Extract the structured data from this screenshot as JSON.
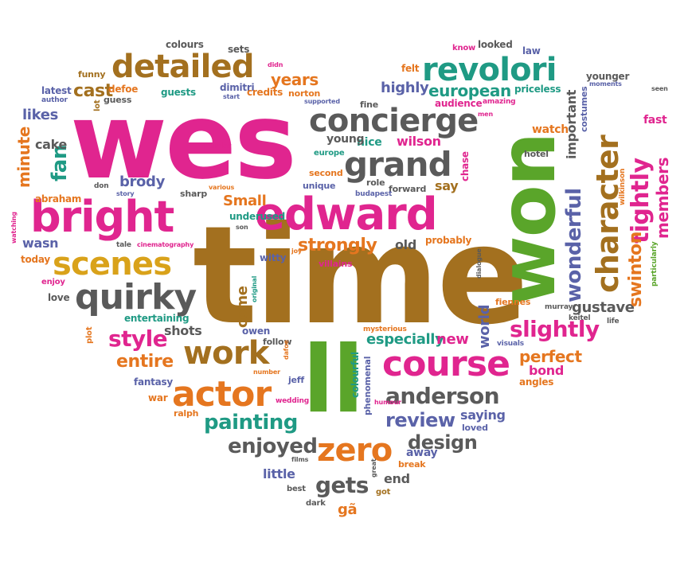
{
  "colors": {
    "pink": "#e0258f",
    "green": "#5aa52a",
    "brown": "#a3701f",
    "orange": "#e5761f",
    "teal": "#1f9a84",
    "purple": "#5a62a8",
    "gray": "#5a5a5a",
    "gold": "#d9a21a"
  },
  "words": [
    {
      "text": "wes",
      "color": "pink"
    },
    {
      "text": "time",
      "color": "brown"
    },
    {
      "text": "won",
      "color": "green"
    },
    {
      "text": "ll",
      "color": "green"
    },
    {
      "text": "edward",
      "color": "pink"
    },
    {
      "text": "bright",
      "color": "pink"
    },
    {
      "text": "concierge",
      "color": "gray"
    },
    {
      "text": "grand",
      "color": "gray"
    },
    {
      "text": "course",
      "color": "pink"
    },
    {
      "text": "revolori",
      "color": "teal"
    },
    {
      "text": "detailed",
      "color": "brown"
    },
    {
      "text": "character",
      "color": "brown"
    },
    {
      "text": "scenes",
      "color": "gold"
    },
    {
      "text": "quirky",
      "color": "gray"
    },
    {
      "text": "actor",
      "color": "orange"
    },
    {
      "text": "work",
      "color": "brown"
    },
    {
      "text": "anderson",
      "color": "gray"
    },
    {
      "text": "zero",
      "color": "orange"
    },
    {
      "text": "style",
      "color": "pink"
    },
    {
      "text": "slightly",
      "color": "pink"
    },
    {
      "text": "wonderful",
      "color": "purple"
    },
    {
      "text": "tightly",
      "color": "pink"
    },
    {
      "text": "painting",
      "color": "teal"
    },
    {
      "text": "enjoyed",
      "color": "gray"
    },
    {
      "text": "review",
      "color": "purple"
    },
    {
      "text": "design",
      "color": "gray"
    },
    {
      "text": "gets",
      "color": "gray"
    },
    {
      "text": "strongly",
      "color": "orange"
    },
    {
      "text": "gustave",
      "color": "gray"
    },
    {
      "text": "swinton",
      "color": "orange"
    },
    {
      "text": "members",
      "color": "pink"
    },
    {
      "text": "european",
      "color": "teal"
    },
    {
      "text": "entire",
      "color": "orange"
    },
    {
      "text": "perfect",
      "color": "orange"
    },
    {
      "text": "cast",
      "color": "brown"
    },
    {
      "text": "years",
      "color": "orange"
    },
    {
      "text": "highly",
      "color": "purple"
    },
    {
      "text": "likes",
      "color": "purple"
    },
    {
      "text": "fan",
      "color": "teal"
    },
    {
      "text": "minute",
      "color": "orange"
    },
    {
      "text": "brody",
      "color": "purple"
    },
    {
      "text": "Small",
      "color": "orange"
    },
    {
      "text": "wilson",
      "color": "pink"
    },
    {
      "text": "especially",
      "color": "teal"
    },
    {
      "text": "new",
      "color": "pink"
    },
    {
      "text": "world",
      "color": "purple"
    },
    {
      "text": "saying",
      "color": "purple"
    },
    {
      "text": "important",
      "color": "gray"
    },
    {
      "text": "bond",
      "color": "pink"
    },
    {
      "text": "shots",
      "color": "gray"
    },
    {
      "text": "nice",
      "color": "teal"
    },
    {
      "text": "young",
      "color": "gray"
    },
    {
      "text": "say",
      "color": "brown"
    },
    {
      "text": "old",
      "color": "gray"
    },
    {
      "text": "end",
      "color": "gray"
    },
    {
      "text": "little",
      "color": "purple"
    },
    {
      "text": "away",
      "color": "purple"
    },
    {
      "text": "wasn",
      "color": "purple"
    },
    {
      "text": "today",
      "color": "orange"
    },
    {
      "text": "love",
      "color": "gray"
    },
    {
      "text": "cake",
      "color": "gray"
    },
    {
      "text": "fast",
      "color": "pink"
    },
    {
      "text": "come",
      "color": "brown"
    },
    {
      "text": "watch",
      "color": "orange"
    },
    {
      "text": "gã",
      "color": "orange"
    },
    {
      "text": "colours",
      "color": "gray"
    },
    {
      "text": "sets",
      "color": "gray"
    },
    {
      "text": "looked",
      "color": "gray"
    },
    {
      "text": "law",
      "color": "purple"
    },
    {
      "text": "know",
      "color": "pink"
    },
    {
      "text": "felt",
      "color": "orange"
    },
    {
      "text": "younger",
      "color": "gray"
    },
    {
      "text": "funny",
      "color": "brown"
    },
    {
      "text": "defoe",
      "color": "orange"
    },
    {
      "text": "latest",
      "color": "purple"
    },
    {
      "text": "guests",
      "color": "teal"
    },
    {
      "text": "dimitri",
      "color": "purple"
    },
    {
      "text": "credits",
      "color": "orange"
    },
    {
      "text": "norton",
      "color": "orange"
    },
    {
      "text": "priceless",
      "color": "teal"
    },
    {
      "text": "audience",
      "color": "pink"
    },
    {
      "text": "fine",
      "color": "gray"
    },
    {
      "text": "chase",
      "color": "pink"
    },
    {
      "text": "hotel",
      "color": "gray"
    },
    {
      "text": "europe",
      "color": "teal"
    },
    {
      "text": "second",
      "color": "orange"
    },
    {
      "text": "unique",
      "color": "purple"
    },
    {
      "text": "role",
      "color": "gray"
    },
    {
      "text": "forward",
      "color": "gray"
    },
    {
      "text": "budapest",
      "color": "purple"
    },
    {
      "text": "sharp",
      "color": "gray"
    },
    {
      "text": "abraham",
      "color": "orange"
    },
    {
      "text": "don",
      "color": "gray"
    },
    {
      "text": "underused",
      "color": "teal"
    },
    {
      "text": "witty",
      "color": "purple"
    },
    {
      "text": "probably",
      "color": "orange"
    },
    {
      "text": "villains",
      "color": "pink"
    },
    {
      "text": "tale",
      "color": "gray"
    },
    {
      "text": "enjoy",
      "color": "pink"
    },
    {
      "text": "entertaining",
      "color": "teal"
    },
    {
      "text": "plot",
      "color": "orange"
    },
    {
      "text": "owen",
      "color": "purple"
    },
    {
      "text": "follow",
      "color": "gray"
    },
    {
      "text": "fantasy",
      "color": "purple"
    },
    {
      "text": "war",
      "color": "orange"
    },
    {
      "text": "ralph",
      "color": "orange"
    },
    {
      "text": "jeff",
      "color": "purple"
    },
    {
      "text": "wedding",
      "color": "pink"
    },
    {
      "text": "colourful",
      "color": "teal"
    },
    {
      "text": "phenomenal",
      "color": "purple"
    },
    {
      "text": "loved",
      "color": "purple"
    },
    {
      "text": "break",
      "color": "orange"
    },
    {
      "text": "got",
      "color": "brown"
    },
    {
      "text": "best",
      "color": "gray"
    },
    {
      "text": "dark",
      "color": "gray"
    },
    {
      "text": "angles",
      "color": "orange"
    },
    {
      "text": "fiennes",
      "color": "orange"
    },
    {
      "text": "murray",
      "color": "gray"
    },
    {
      "text": "keitel",
      "color": "gray"
    },
    {
      "text": "life",
      "color": "gray"
    },
    {
      "text": "visuals",
      "color": "purple"
    },
    {
      "text": "mysterious",
      "color": "orange"
    },
    {
      "text": "particularly",
      "color": "green"
    },
    {
      "text": "wilkinson",
      "color": "orange"
    },
    {
      "text": "costumes",
      "color": "purple"
    },
    {
      "text": "amazing",
      "color": "pink"
    },
    {
      "text": "supported",
      "color": "purple"
    },
    {
      "text": "start",
      "color": "purple"
    },
    {
      "text": "author",
      "color": "purple"
    },
    {
      "text": "guess",
      "color": "gray"
    },
    {
      "text": "lot",
      "color": "brown"
    },
    {
      "text": "murder",
      "color": "pink"
    },
    {
      "text": "story",
      "color": "purple"
    },
    {
      "text": "various",
      "color": "orange"
    },
    {
      "text": "cinematography",
      "color": "pink"
    },
    {
      "text": "son",
      "color": "gray"
    },
    {
      "text": "joy",
      "color": "orange"
    },
    {
      "text": "original",
      "color": "teal"
    },
    {
      "text": "number",
      "color": "orange"
    },
    {
      "text": "dafoe",
      "color": "orange"
    },
    {
      "text": "humour",
      "color": "pink"
    },
    {
      "text": "great",
      "color": "gray"
    },
    {
      "text": "films",
      "color": "gray"
    },
    {
      "text": "dialogue",
      "color": "gray"
    },
    {
      "text": "watching",
      "color": "pink"
    },
    {
      "text": "didn",
      "color": "pink"
    },
    {
      "text": "men",
      "color": "pink"
    },
    {
      "text": "moments",
      "color": "purple"
    },
    {
      "text": "seen",
      "color": "gray"
    }
  ]
}
